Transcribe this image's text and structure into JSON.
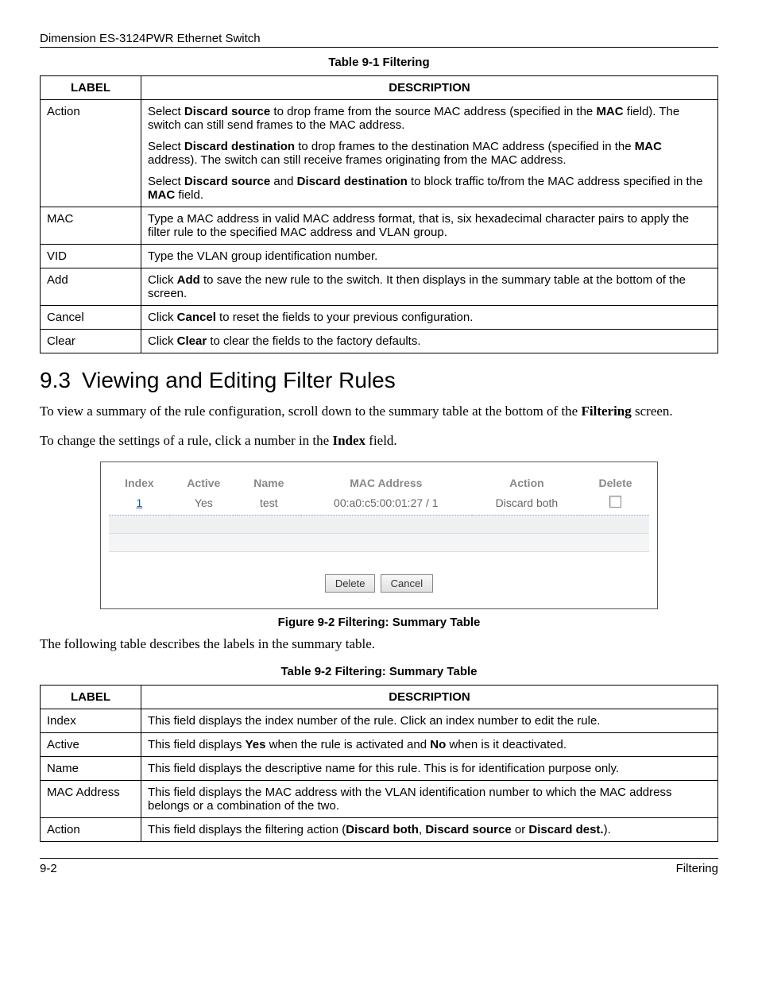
{
  "header": {
    "product": "Dimension ES-3124PWR Ethernet Switch"
  },
  "table1": {
    "caption": "Table 9-1 Filtering",
    "headers": {
      "label": "LABEL",
      "description": "DESCRIPTION"
    },
    "rows": [
      {
        "label": "Action",
        "desc": [
          "Select <b>Discard source</b> to drop frame from the source MAC address (specified in the <b>MAC</b> field). The switch can still send frames to the MAC address.",
          "Select <b>Discard destination</b> to drop frames to the destination MAC address (specified in the <b>MAC</b> address). The switch can still receive frames originating from the MAC address.",
          "Select <b>Discard source</b> and <b>Discard destination</b> to block traffic to/from the MAC address specified in the <b>MAC</b> field."
        ]
      },
      {
        "label": "MAC",
        "desc": [
          "Type a MAC address in valid MAC address format, that is, six hexadecimal character pairs to apply the filter rule to the specified MAC address and VLAN group."
        ]
      },
      {
        "label": "VID",
        "desc": [
          "Type the VLAN group identification number."
        ]
      },
      {
        "label": "Add",
        "desc": [
          "Click <b>Add</b> to save the new rule to the switch. It then displays in the summary table at the bottom of the screen."
        ]
      },
      {
        "label": "Cancel",
        "desc": [
          "Click <b>Cancel</b> to reset the fields to your previous configuration."
        ]
      },
      {
        "label": "Clear",
        "desc": [
          "Click <b>Clear</b> to clear the fields to the factory defaults."
        ]
      }
    ]
  },
  "section": {
    "number": "9.3",
    "title": "Viewing and Editing Filter Rules"
  },
  "paras": {
    "p1": "To view a summary of the rule configuration, scroll down to the summary table at the bottom of the <b>Filtering</b> screen.",
    "p2": "To change the settings of a rule, click a number in the <b>Index</b> field."
  },
  "summary": {
    "headers": {
      "index": "Index",
      "active": "Active",
      "name": "Name",
      "mac": "MAC Address",
      "action": "Action",
      "del": "Delete"
    },
    "row": {
      "index": "1",
      "active": "Yes",
      "name": "test",
      "mac": "00:a0:c5:00:01:27 / 1",
      "action": "Discard both"
    },
    "buttons": {
      "delete": "Delete",
      "cancel": "Cancel"
    }
  },
  "figcaption": "Figure 9-2 Filtering: Summary Table",
  "para3": "The following table describes the labels in the summary table.",
  "table2": {
    "caption": "Table 9-2 Filtering: Summary Table",
    "headers": {
      "label": "LABEL",
      "description": "DESCRIPTION"
    },
    "rows": [
      {
        "label": "Index",
        "desc": "This field displays the index number of the rule. Click an index number to edit the rule."
      },
      {
        "label": "Active",
        "desc": "This field displays <b>Yes</b> when the rule is activated and <b>No</b> when is it deactivated."
      },
      {
        "label": "Name",
        "desc": "This field displays the descriptive name for this rule. This is for identification purpose only."
      },
      {
        "label": "MAC Address",
        "desc": "This field displays the MAC address with the VLAN identification number to which the MAC address belongs or a combination of the two."
      },
      {
        "label": "Action",
        "desc": "This field displays the filtering action (<b>Discard both</b>, <b>Discard source</b> or <b>Discard dest.</b>)."
      }
    ]
  },
  "footer": {
    "page": "9-2",
    "section": "Filtering"
  }
}
